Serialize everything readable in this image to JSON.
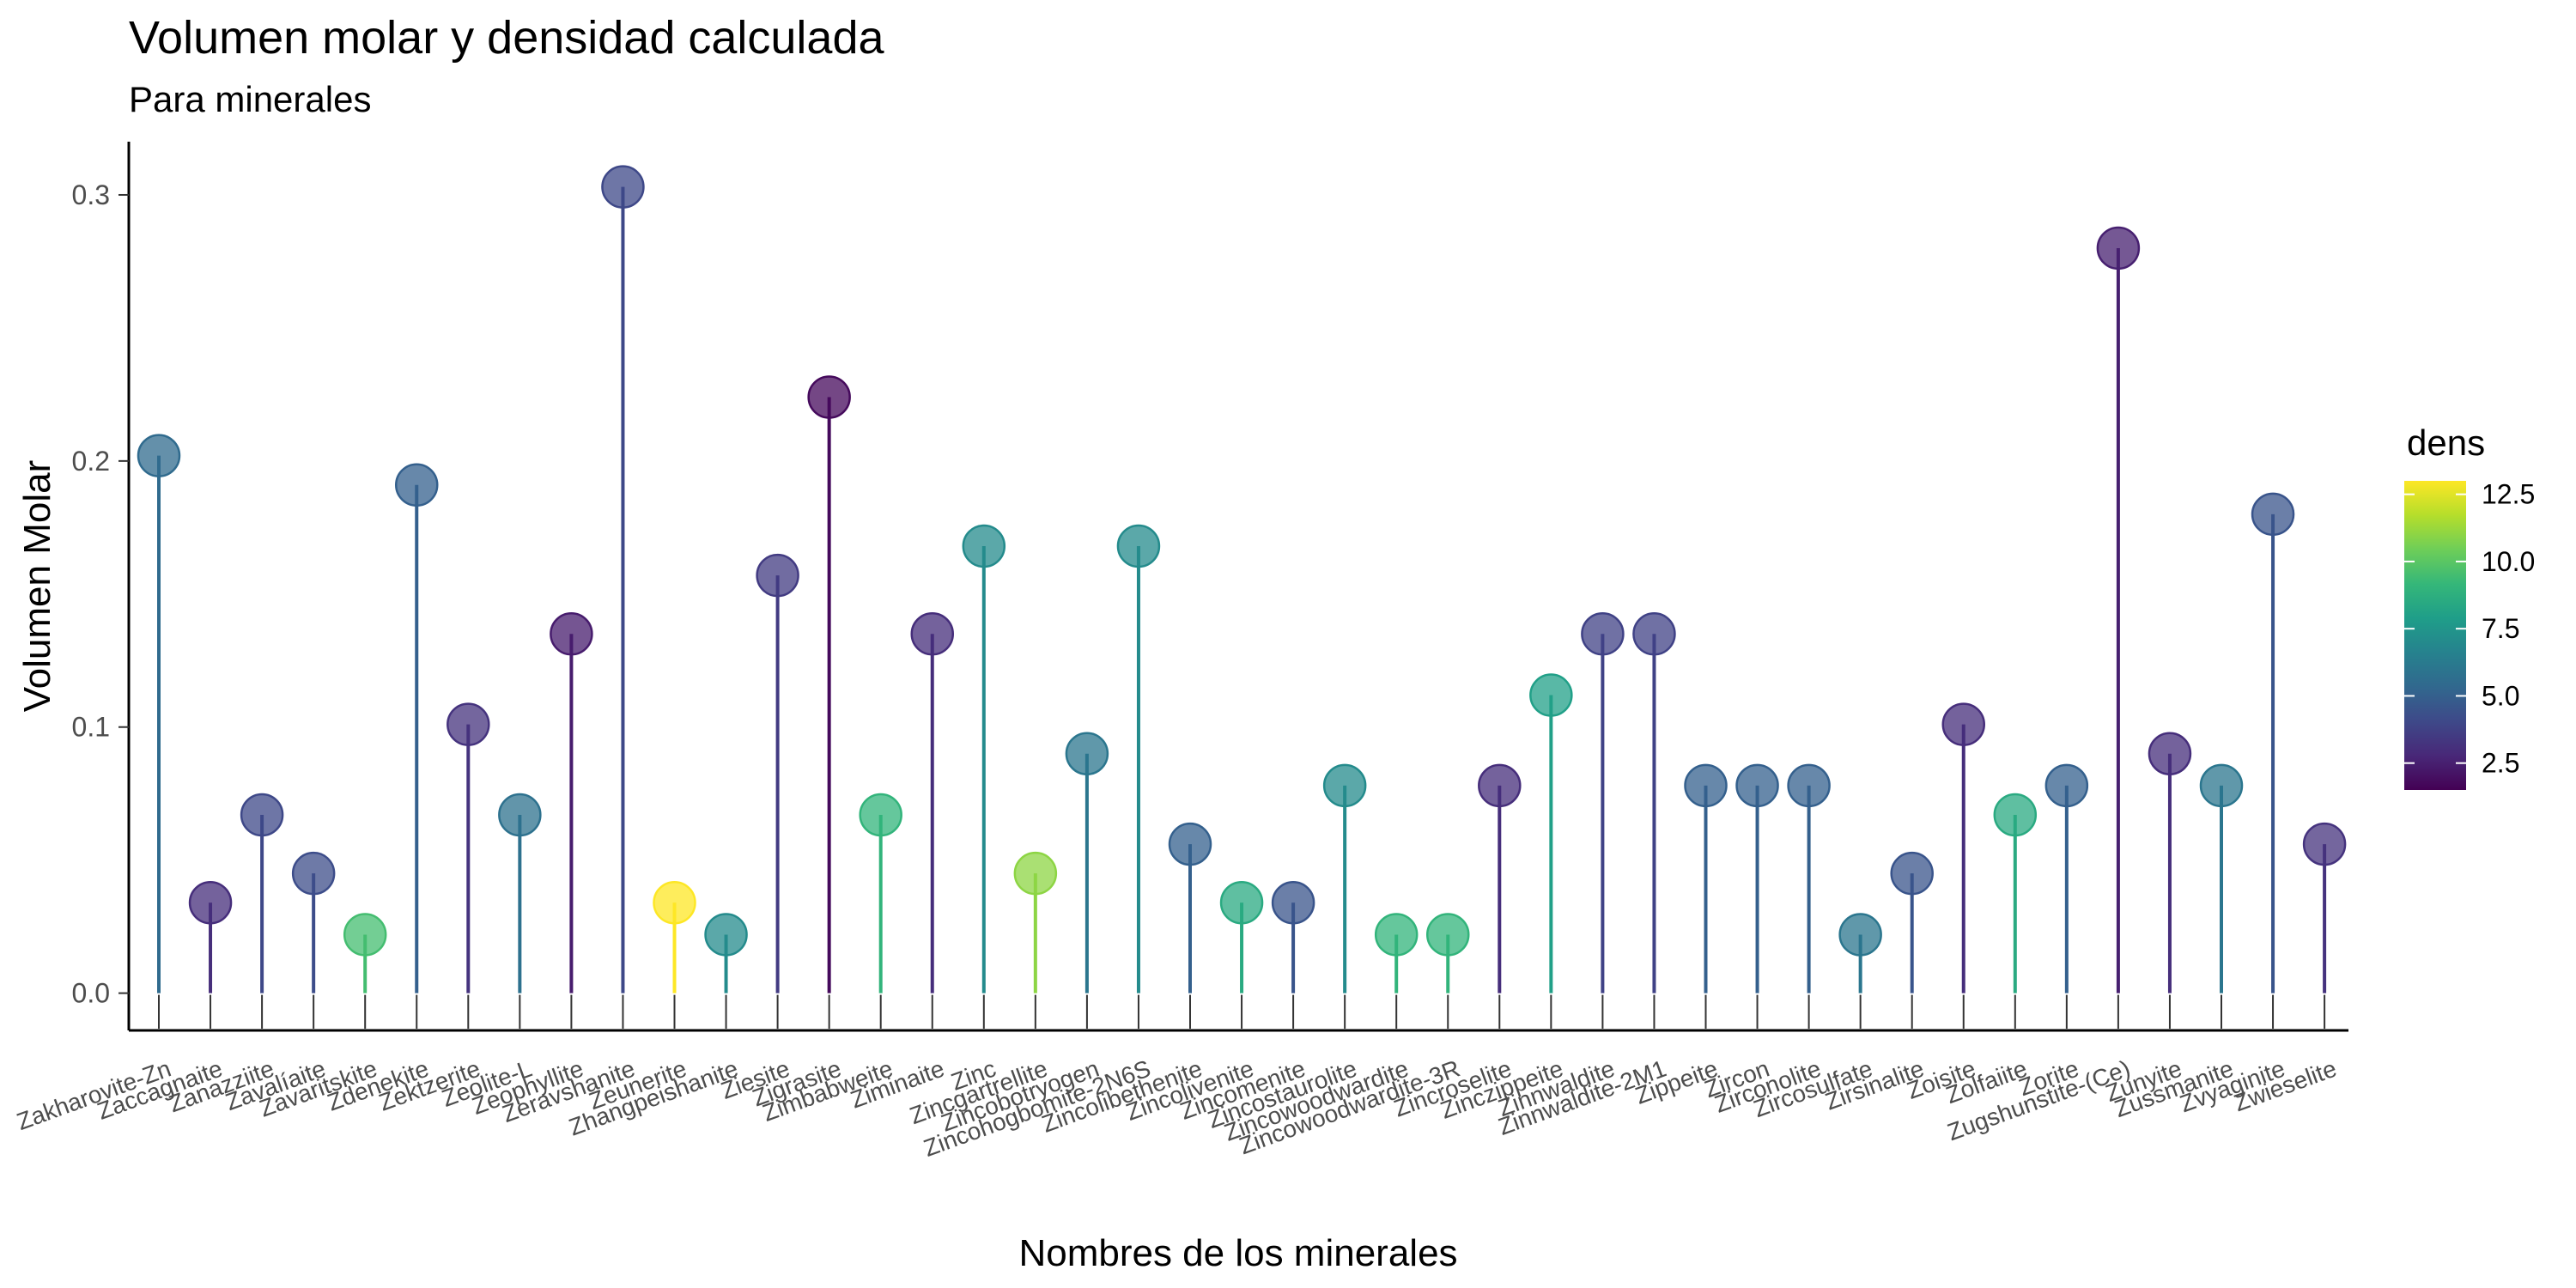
{
  "chart_data": {
    "type": "lollipop",
    "title": "Volumen molar y densidad calculada",
    "subtitle": "Para minerales",
    "xlabel": "Nombres de los minerales",
    "ylabel": "Volumen Molar",
    "ylim": [
      -0.014,
      0.32
    ],
    "yticks": [
      0.0,
      0.1,
      0.2,
      0.3
    ],
    "ytick_labels": [
      "0.0",
      "0.1",
      "0.2",
      "0.3"
    ],
    "grid": false,
    "color_scale": {
      "name": "viridis",
      "legend_title": "dens",
      "domain": [
        1.5,
        13.0
      ],
      "ticks": [
        2.5,
        5.0,
        7.5,
        10.0,
        12.5
      ],
      "tick_labels": [
        "2.5",
        "5.0",
        "7.5",
        "10.0",
        "12.5"
      ],
      "legend_position": "right"
    },
    "categories": [
      "Zakharovite-Zn",
      "Zaccagnaite",
      "Zanazziite",
      "Zavalíaite",
      "Zavaritskite",
      "Zdenekite",
      "Zektzerite",
      "Zeolite-L",
      "Zeophyllite",
      "Zeravshanite",
      "Zeunerite",
      "Zhangpeishanite",
      "Ziesite",
      "Zigrasite",
      "Zimbabweite",
      "Ziminaite",
      "Zinc",
      "Zincgartrellite",
      "Zincobotryogen",
      "Zincohogbomite-2N6S",
      "Zincolibethenite",
      "Zincolivenite",
      "Zincomenite",
      "Zincostaurolite",
      "Zincowoodwardite",
      "Zincowoodwardite-3R",
      "Zincroselite",
      "Zinczippeite",
      "Zinnwaldite",
      "Zinnwaldite-2M1",
      "Zippeite",
      "Zircon",
      "Zirconolite",
      "Zircosulfate",
      "Zirsinalite",
      "Zoisite",
      "Zolfaiite",
      "Zorite",
      "Zugshunstite-(Ce)",
      "Zunyite",
      "Zussmanite",
      "Zvyaginite",
      "Zwieselite"
    ],
    "values": [
      0.202,
      0.034,
      0.067,
      0.045,
      0.022,
      0.191,
      0.101,
      0.067,
      0.135,
      0.303,
      0.034,
      0.022,
      0.157,
      0.224,
      0.067,
      0.135,
      0.168,
      0.045,
      0.09,
      0.168,
      0.056,
      0.034,
      0.034,
      0.078,
      0.022,
      0.022,
      0.078,
      0.112,
      0.135,
      0.135,
      0.078,
      0.078,
      0.078,
      0.022,
      0.045,
      0.101,
      0.067,
      0.078,
      0.28,
      0.09,
      0.078,
      0.18,
      0.056
    ],
    "dens": [
      5.5,
      3.0,
      4.0,
      4.2,
      9.5,
      5.0,
      3.2,
      5.8,
      2.4,
      4.0,
      13.0,
      7.0,
      3.5,
      1.8,
      9.0,
      3.0,
      7.0,
      11.0,
      6.0,
      7.0,
      5.0,
      8.5,
      4.5,
      7.0,
      9.0,
      9.0,
      3.0,
      8.0,
      3.8,
      3.8,
      5.0,
      5.0,
      5.0,
      6.0,
      4.5,
      3.0,
      8.5,
      5.0,
      2.5,
      3.0,
      6.0,
      4.5,
      3.2
    ]
  }
}
